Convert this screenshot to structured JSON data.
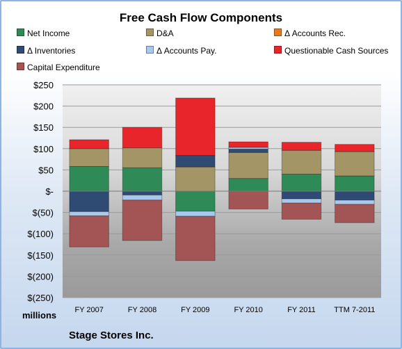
{
  "chart_data": {
    "type": "bar",
    "stacked": true,
    "title": "Free Cash Flow Components",
    "units_label": "millions",
    "company": "Stage Stores Inc.",
    "categories": [
      "FY 2007",
      "FY 2008",
      "FY 2009",
      "FY 2010",
      "FY 2011",
      "TTM 7-2011"
    ],
    "y_ticks": [
      "$250",
      "$200",
      "$150",
      "$100",
      "$50",
      "$-",
      "$(50)",
      "$(100)",
      "$(150)",
      "$(200)",
      "$(250)"
    ],
    "ylim": [
      -250,
      250
    ],
    "legend_position": "top",
    "series": [
      {
        "name": "Net Income",
        "color": "#2e8b57",
        "values": [
          58,
          55,
          -47,
          30,
          40,
          36
        ]
      },
      {
        "name": "D&A",
        "color": "#a39565",
        "values": [
          42,
          47,
          57,
          61,
          56,
          57
        ]
      },
      {
        "name": "Δ Accounts Rec.",
        "color": "#e87a1e",
        "values": [
          0,
          0,
          0,
          0,
          0,
          0
        ]
      },
      {
        "name": "Δ Inventories",
        "color": "#2f4a73",
        "values": [
          -48,
          -9,
          27,
          8,
          -18,
          -21
        ]
      },
      {
        "name": "Δ Accounts Pay.",
        "color": "#a8c8ec",
        "values": [
          -10,
          -12,
          -12,
          4,
          -10,
          -10
        ]
      },
      {
        "name": "Questionable Cash Sources",
        "color": "#e8252a",
        "values": [
          21,
          48,
          135,
          13,
          19,
          17
        ]
      },
      {
        "name": "Capital Expenditure",
        "color": "#a35454",
        "values": [
          -73,
          -95,
          -104,
          -42,
          -38,
          -43
        ]
      }
    ]
  }
}
